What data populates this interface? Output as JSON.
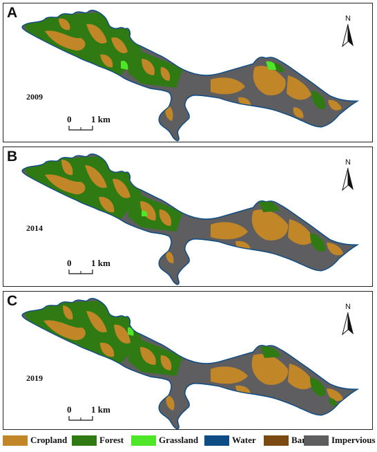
{
  "panels": [
    {
      "letter": "A",
      "year": "2009"
    },
    {
      "letter": "B",
      "year": "2014"
    },
    {
      "letter": "C",
      "year": "2019"
    }
  ],
  "north_label": "N",
  "scale": {
    "zero": "0",
    "value": "1 km"
  },
  "legend": [
    {
      "label": "Cropland",
      "color": "#C08628"
    },
    {
      "label": "Forest",
      "color": "#2F7A12"
    },
    {
      "label": "Grassland",
      "color": "#4FE62A"
    },
    {
      "label": "Water",
      "color": "#0E4C86"
    },
    {
      "label": "Barren",
      "color": "#7A4A12"
    },
    {
      "label": "Impervious",
      "color": "#5E5E60"
    }
  ],
  "colors": {
    "cropland": "#C08628",
    "forest": "#2F7A12",
    "grassland": "#4FE62A",
    "water": "#0E4C86",
    "impervious": "#5E5E60"
  }
}
